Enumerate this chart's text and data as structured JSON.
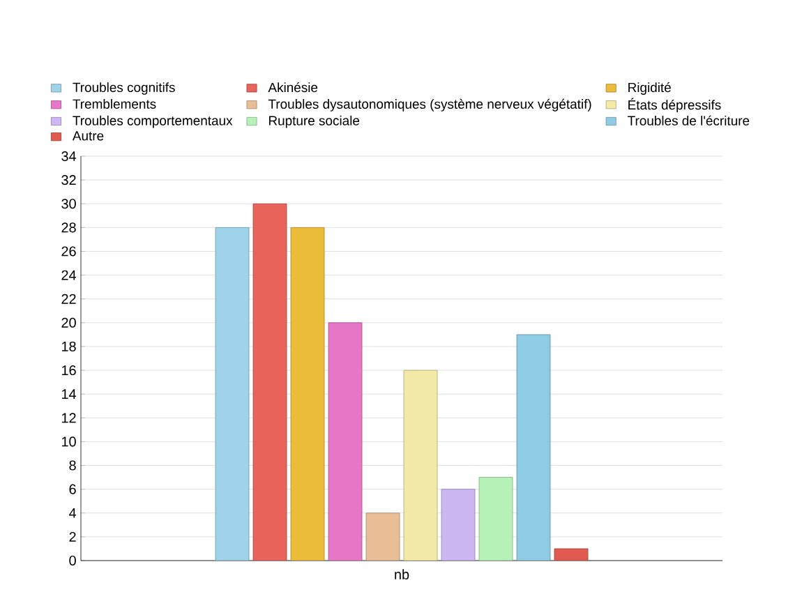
{
  "chart_data": {
    "type": "bar",
    "categories": [
      "nb"
    ],
    "series": [
      {
        "name": "Troubles cognitifs",
        "color": "#9ed3ea",
        "values": [
          28
        ]
      },
      {
        "name": "Akinésie",
        "color": "#e8635a",
        "values": [
          30
        ]
      },
      {
        "name": "Rigidité",
        "color": "#ebbb3a",
        "values": [
          28
        ]
      },
      {
        "name": "Tremblements",
        "color": "#e676c6",
        "values": [
          20
        ]
      },
      {
        "name": "Troubles dysautonomiques (système nerveux végétatif)",
        "color": "#e9bd95",
        "values": [
          4
        ]
      },
      {
        "name": "États dépressifs",
        "color": "#f2eaa6",
        "values": [
          16
        ]
      },
      {
        "name": "Troubles comportementaux",
        "color": "#cdb7f2",
        "values": [
          6
        ]
      },
      {
        "name": "Rupture sociale",
        "color": "#b6f2b8",
        "values": [
          7
        ]
      },
      {
        "name": "Troubles de l'écriture",
        "color": "#8fcbe4",
        "values": [
          19
        ]
      },
      {
        "name": "Autre",
        "color": "#e05a50",
        "values": [
          1
        ]
      }
    ],
    "ylim": [
      0,
      34
    ],
    "yticks": [
      0,
      2,
      4,
      6,
      8,
      10,
      12,
      14,
      16,
      18,
      20,
      22,
      24,
      26,
      28,
      30,
      32,
      34
    ],
    "grid": "y",
    "legend": "top"
  }
}
